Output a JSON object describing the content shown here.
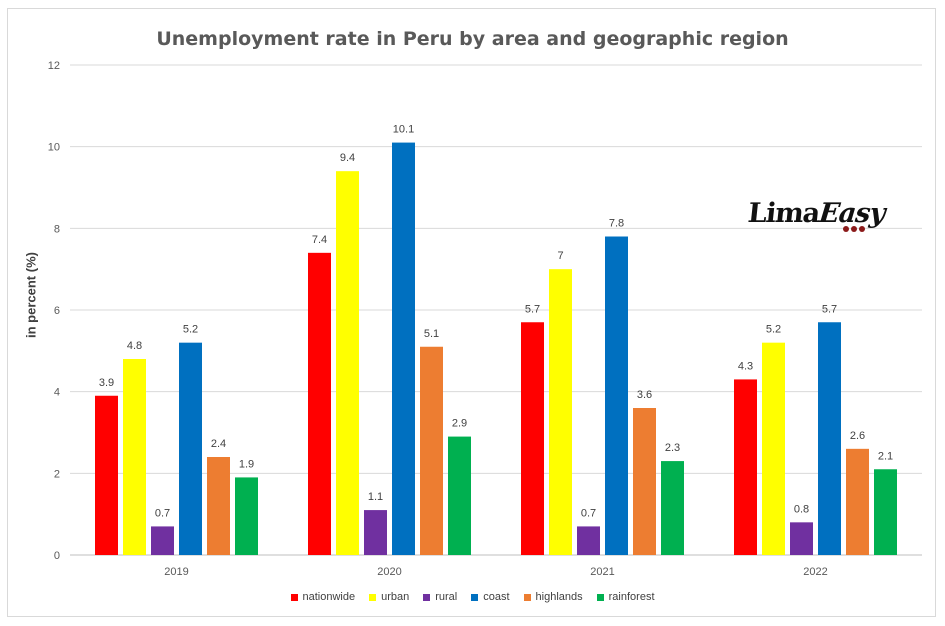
{
  "logo": {
    "text": "LimaEasy"
  },
  "chart_data": {
    "type": "bar",
    "title": "Unemployment rate in Peru by area and geographic region",
    "xlabel": "",
    "ylabel": "in percent (%)",
    "ylim": [
      0,
      12
    ],
    "yticks": [
      "0",
      "2",
      "4",
      "6",
      "8",
      "10",
      "12"
    ],
    "grid": true,
    "legend_position": "bottom",
    "categories": [
      "2019",
      "2020",
      "2021",
      "2022"
    ],
    "series": [
      {
        "name": "nationwide",
        "color": "#ff0000",
        "values": [
          3.9,
          7.4,
          5.7,
          4.3
        ],
        "labels": [
          "3.9",
          "7.4",
          "5.7",
          "4.3"
        ]
      },
      {
        "name": "urban",
        "color": "#ffff00",
        "values": [
          4.8,
          9.4,
          7,
          5.2
        ],
        "labels": [
          "4.8",
          "9.4",
          "7",
          "5.2"
        ]
      },
      {
        "name": "rural",
        "color": "#7030a0",
        "values": [
          0.7,
          1.1,
          0.7,
          0.8
        ],
        "labels": [
          "0.7",
          "1.1",
          "0.7",
          "0.8"
        ]
      },
      {
        "name": "coast",
        "color": "#0070c0",
        "values": [
          5.2,
          10.1,
          7.8,
          5.7
        ],
        "labels": [
          "5.2",
          "10.1",
          "7.8",
          "5.7"
        ]
      },
      {
        "name": "highlands",
        "color": "#ed7d31",
        "values": [
          2.4,
          5.1,
          3.6,
          2.6
        ],
        "labels": [
          "2.4",
          "5.1",
          "3.6",
          "2.6"
        ]
      },
      {
        "name": "rainforest",
        "color": "#00b050",
        "values": [
          1.9,
          2.9,
          2.3,
          2.1
        ],
        "labels": [
          "1.9",
          "2.9",
          "2.3",
          "2.1"
        ]
      }
    ]
  }
}
